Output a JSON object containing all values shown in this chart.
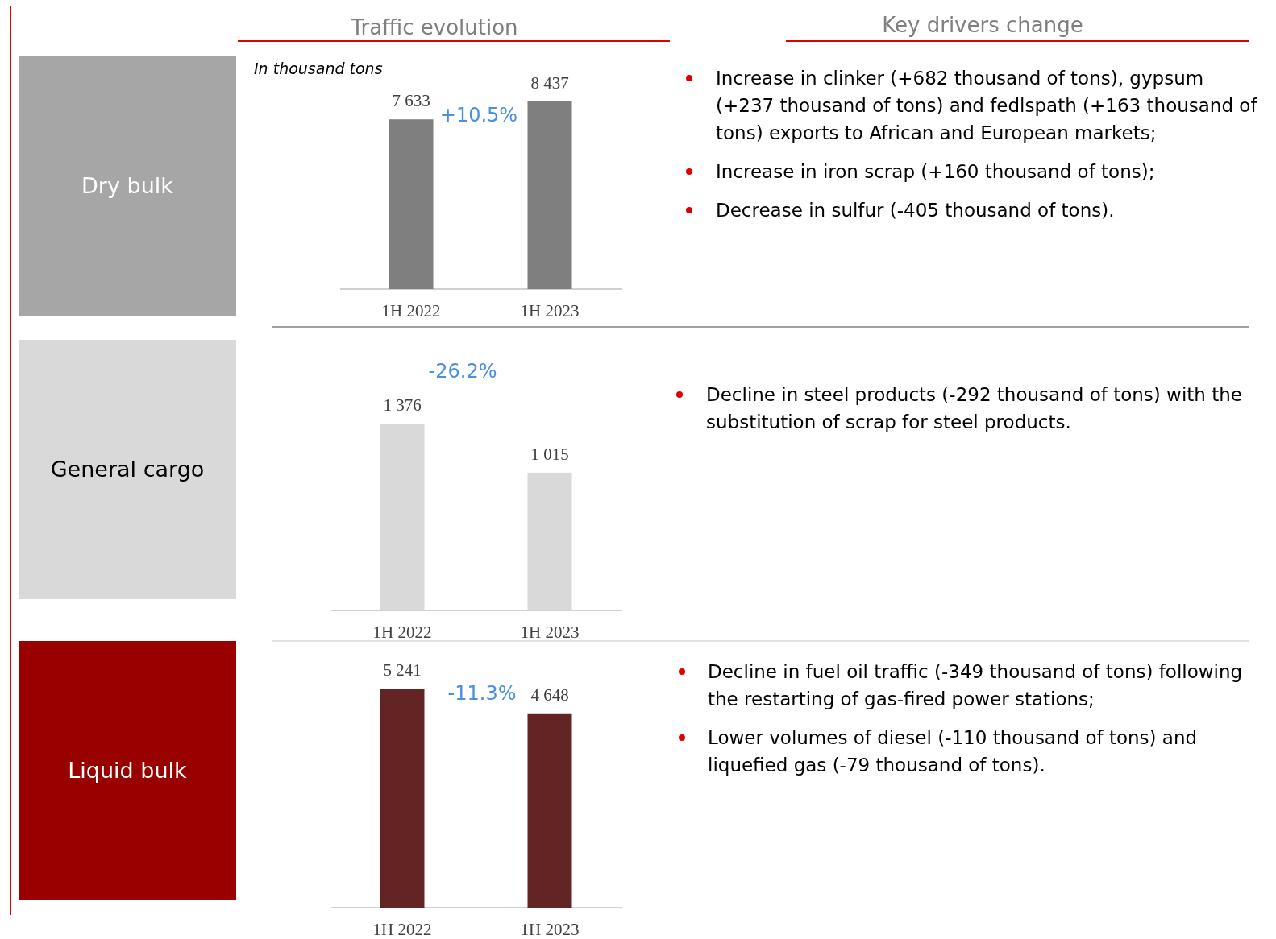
{
  "chart_data": [
    {
      "type": "other",
      "title": "Dry bulk"
    },
    {
      "type": "bar",
      "title": "Traffic evolution",
      "categories": [
        "1H 2022",
        "1H 2023"
      ],
      "values": [
        7633,
        8437
      ],
      "value_labels": [
        "7 633",
        "8 437"
      ],
      "color": "#7f7f7f",
      "annotations": [
        "In thousand tons",
        "+10.5%"
      ]
    },
    {
      "type": "other",
      "title": "Key drivers change",
      "annotations": [
        "Increase in clinker (+682 thousand of tons), gypsum (+237 thousand of tons) and fedlspath (+163 thousand of tons) exports to African and European markets;",
        "Increase in iron scrap (+160 thousand of tons);",
        "Decrease in sulfur (-405 thousand of tons)."
      ]
    },
    {
      "type": "other",
      "title": "General cargo"
    },
    {
      "type": "bar",
      "categories": [
        "1H 2022",
        "1H 2023"
      ],
      "values": [
        1376,
        1015
      ],
      "value_labels": [
        "1 376",
        "1 015"
      ],
      "color": "#d9d9d9",
      "annotations": [
        "-26.2%"
      ]
    },
    {
      "type": "other",
      "annotations": [
        "Decline in steel products (-292 thousand of tons) with the substitution of scrap for steel products."
      ]
    },
    {
      "type": "other",
      "title": "Liquid bulk"
    },
    {
      "type": "bar",
      "categories": [
        "1H 2022",
        "1H 2023"
      ],
      "values": [
        5241,
        4648
      ],
      "value_labels": [
        "5 241",
        "4 648"
      ],
      "color": "#632523",
      "annotations": [
        "-11.3%"
      ]
    },
    {
      "type": "other",
      "annotations": [
        "Decline in fuel oil traffic (-349 thousand of tons) following the restarting of gas-fired power stations;",
        "Lower volumes of diesel (-110 thousand of tons) and liquefied gas (-79 thousand of tons)."
      ]
    }
  ]
}
